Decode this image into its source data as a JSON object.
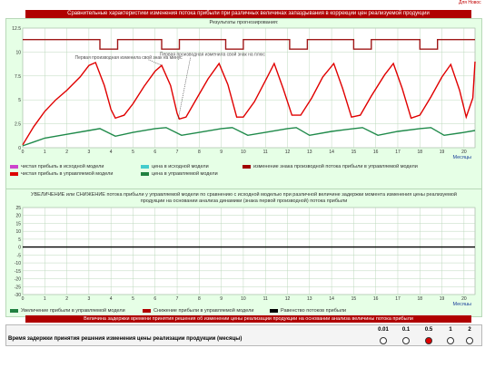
{
  "top_link": "Для Новос",
  "title": "Сравнительные характеристики изменения потока прибыли при различных величинах запаздывания в коррекции цен реализуемой продукции",
  "chart1": {
    "panel_title": "Результаты прогнозирования:",
    "annotation_minus": "Первая производная изменила свой знак на минус",
    "annotation_plus": "Первая производная изменила свой знак на плюс",
    "xlabel": "Месяцы",
    "legend": [
      {
        "label": "чистая прибыль в исходной модели",
        "color": "#cc44cc"
      },
      {
        "label": "цена в исходной модели",
        "color": "#44cccc"
      },
      {
        "label": "изменение знака производной потока прибыли в управляемой модели",
        "color": "#a00000"
      },
      {
        "label": "чистая прибыль в управляемой модели",
        "color": "#dd0000"
      },
      {
        "label": "цена в управляемой модели",
        "color": "#208040"
      }
    ],
    "colors": {
      "profit": "#e00000",
      "price": "#1f8a4a",
      "sign": "#a01818"
    }
  },
  "chart2": {
    "panel_title": "УВЕЛИЧЕНИЕ или СНИЖЕНИЕ потока прибыли у управляемой модели по сравнению с исходной моделью при различной величине задержки момента изменения цены реализуемой продукции на основании анализа динамики (знака первой производной) потока прибыли",
    "xlabel": "Месяцы",
    "legend": [
      {
        "label": "Увеличение прибыли в управляемой модели",
        "color": "#208040"
      },
      {
        "label": "Снижение прибыли в управляемой модели",
        "color": "#b00000"
      },
      {
        "label": "Равенство потоков прибыли",
        "color": "#000000"
      }
    ]
  },
  "chart_data": [
    {
      "type": "line",
      "title": "Результаты прогнозирования:",
      "xlabel": "Месяцы",
      "ylabel": "",
      "x": [
        0,
        1,
        2,
        3,
        4,
        5,
        6,
        7,
        8,
        9,
        10,
        11,
        12,
        13,
        14,
        15,
        16,
        17,
        18,
        19,
        20
      ],
      "xlim": [
        0,
        20.5
      ],
      "ylim": [
        0,
        12.5
      ],
      "yticks": [
        0,
        2.5,
        5,
        7.5,
        10,
        12.5
      ],
      "series": [
        {
          "name": "чистая прибыль в управляемой модели",
          "color": "#e00000",
          "points": [
            [
              0,
              0.3
            ],
            [
              0.5,
              2.2
            ],
            [
              1,
              3.8
            ],
            [
              1.5,
              5
            ],
            [
              2,
              6
            ],
            [
              2.6,
              7.4
            ],
            [
              3,
              8.6
            ],
            [
              3.3,
              8.9
            ],
            [
              3.7,
              6.5
            ],
            [
              4,
              4
            ],
            [
              4.2,
              3.1
            ],
            [
              4.6,
              3.4
            ],
            [
              5,
              4.6
            ],
            [
              5.5,
              6.4
            ],
            [
              6,
              8
            ],
            [
              6.3,
              8.6
            ],
            [
              6.7,
              6.5
            ],
            [
              7,
              3.6
            ],
            [
              7.1,
              3
            ],
            [
              7.4,
              3.2
            ],
            [
              7.9,
              5.2
            ],
            [
              8.4,
              7.2
            ],
            [
              8.9,
              8.8
            ],
            [
              9.3,
              6.6
            ],
            [
              9.7,
              3.2
            ],
            [
              10,
              3.2
            ],
            [
              10.5,
              4.8
            ],
            [
              11,
              7
            ],
            [
              11.4,
              8.8
            ],
            [
              11.8,
              6.2
            ],
            [
              12.2,
              3.4
            ],
            [
              12.6,
              3.4
            ],
            [
              13.1,
              5.2
            ],
            [
              13.6,
              7.4
            ],
            [
              14.1,
              8.8
            ],
            [
              14.5,
              6.2
            ],
            [
              14.9,
              3.2
            ],
            [
              15.3,
              3.4
            ],
            [
              15.8,
              5.4
            ],
            [
              16.4,
              7.6
            ],
            [
              16.8,
              8.8
            ],
            [
              17.2,
              6.2
            ],
            [
              17.6,
              3.1
            ],
            [
              18,
              3.4
            ],
            [
              18.5,
              5.3
            ],
            [
              19,
              7.4
            ],
            [
              19.4,
              8.7
            ],
            [
              19.8,
              6
            ],
            [
              20.1,
              3.2
            ],
            [
              20.4,
              5.2
            ],
            [
              20.5,
              9
            ]
          ]
        },
        {
          "name": "цена в управляемой модели",
          "color": "#1f8a4a",
          "points": [
            [
              0,
              0.2
            ],
            [
              0.5,
              0.6
            ],
            [
              1,
              1
            ],
            [
              1.5,
              1.2
            ],
            [
              2,
              1.4
            ],
            [
              3,
              1.8
            ],
            [
              3.5,
              2
            ],
            [
              4.2,
              1.2
            ],
            [
              5,
              1.6
            ],
            [
              6,
              2
            ],
            [
              6.5,
              2.1
            ],
            [
              7.2,
              1.3
            ],
            [
              8,
              1.6
            ],
            [
              9,
              2
            ],
            [
              9.5,
              2.1
            ],
            [
              10.2,
              1.3
            ],
            [
              11,
              1.6
            ],
            [
              12,
              2
            ],
            [
              12.4,
              2.1
            ],
            [
              13,
              1.3
            ],
            [
              14,
              1.7
            ],
            [
              15,
              2
            ],
            [
              15.4,
              2.1
            ],
            [
              16.1,
              1.3
            ],
            [
              17,
              1.7
            ],
            [
              18,
              2
            ],
            [
              18.5,
              2.1
            ],
            [
              19.1,
              1.3
            ],
            [
              20,
              1.6
            ],
            [
              20.5,
              1.8
            ]
          ]
        },
        {
          "name": "изменение знака производной потока прибыли в управляемой модели",
          "color": "#a01818",
          "points": [
            [
              0,
              11.3
            ],
            [
              3.5,
              11.3
            ],
            [
              3.5,
              10.3
            ],
            [
              4.3,
              10.3
            ],
            [
              4.3,
              11.3
            ],
            [
              6.3,
              11.3
            ],
            [
              6.3,
              10.3
            ],
            [
              7.1,
              10.3
            ],
            [
              7.1,
              11.3
            ],
            [
              9.2,
              11.3
            ],
            [
              9.2,
              10.3
            ],
            [
              10,
              10.3
            ],
            [
              10,
              11.3
            ],
            [
              12.1,
              11.3
            ],
            [
              12.1,
              10.3
            ],
            [
              12.9,
              10.3
            ],
            [
              12.9,
              11.3
            ],
            [
              15,
              11.3
            ],
            [
              15,
              10.3
            ],
            [
              15.8,
              10.3
            ],
            [
              15.8,
              11.3
            ],
            [
              18,
              11.3
            ],
            [
              18,
              10.3
            ],
            [
              18.8,
              10.3
            ],
            [
              18.8,
              11.3
            ],
            [
              20.5,
              11.3
            ]
          ]
        }
      ]
    },
    {
      "type": "line",
      "title": "УВЕЛИЧЕНИЕ или СНИЖЕНИЕ потока прибыли у управляемой модели",
      "xlabel": "Месяцы",
      "ylabel": "",
      "x": [
        0,
        1,
        2,
        3,
        4,
        5,
        6,
        7,
        8,
        9,
        10,
        11,
        12,
        13,
        14,
        15,
        16,
        17,
        18,
        19,
        20
      ],
      "xlim": [
        0,
        20.5
      ],
      "ylim": [
        -30,
        25
      ],
      "yticks": [
        25,
        20,
        15,
        10,
        5,
        0,
        -5,
        -10,
        -15,
        -20,
        -25,
        -30
      ],
      "series": [
        {
          "name": "Равенство потоков прибыли",
          "color": "#000000",
          "points": [
            [
              0,
              0
            ],
            [
              20.5,
              0
            ]
          ]
        }
      ]
    }
  ],
  "delay": {
    "header": "Величина задержки времени принятия решения об изменении цены реализации продукции на основании анализа величины потока прибыли",
    "label": "Время задержки принятия решения изменения цены реализации продукции (месяцы)",
    "options": [
      "0.01",
      "0.1",
      "0.5",
      "1",
      "2"
    ],
    "selected": "0.5"
  }
}
